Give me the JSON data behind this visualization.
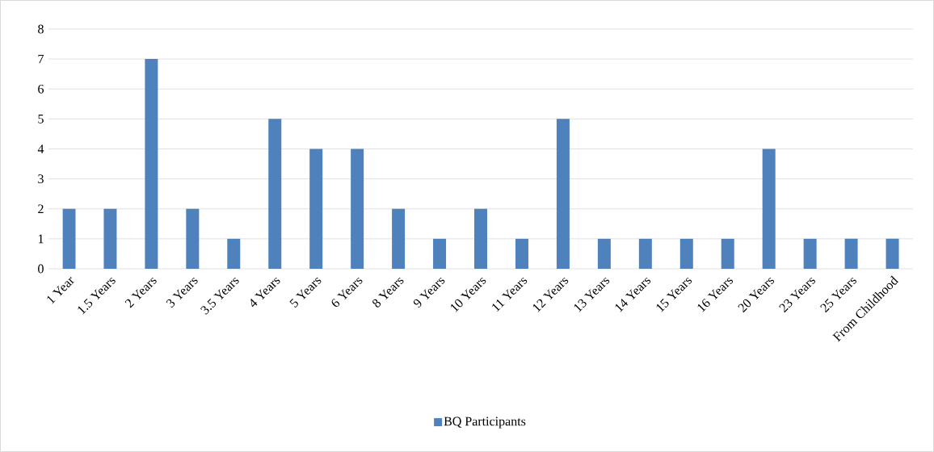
{
  "chart_data": {
    "type": "bar",
    "categories": [
      "1 Year",
      "1.5 Years",
      "2 Years",
      "3 Years",
      "3.5 Years",
      "4 Years",
      "5 Years",
      "6 Years",
      "8 Years",
      "9 Years",
      "10 Years",
      "11 Years",
      "12 Years",
      "13 Years",
      "14 Years",
      "15 Years",
      "16 Years",
      "20 Years",
      "23 Years",
      "25 Years",
      "From Childhood"
    ],
    "series": [
      {
        "name": "BQ Participants",
        "color": "#4f81bd",
        "values": [
          2,
          2,
          7,
          2,
          1,
          5,
          4,
          4,
          2,
          1,
          2,
          1,
          5,
          1,
          1,
          1,
          1,
          4,
          1,
          1,
          1
        ]
      }
    ],
    "ylim": [
      0,
      8
    ],
    "yticks": [
      0,
      1,
      2,
      3,
      4,
      5,
      6,
      7,
      8
    ],
    "grid": "y",
    "legend": "bottom"
  }
}
